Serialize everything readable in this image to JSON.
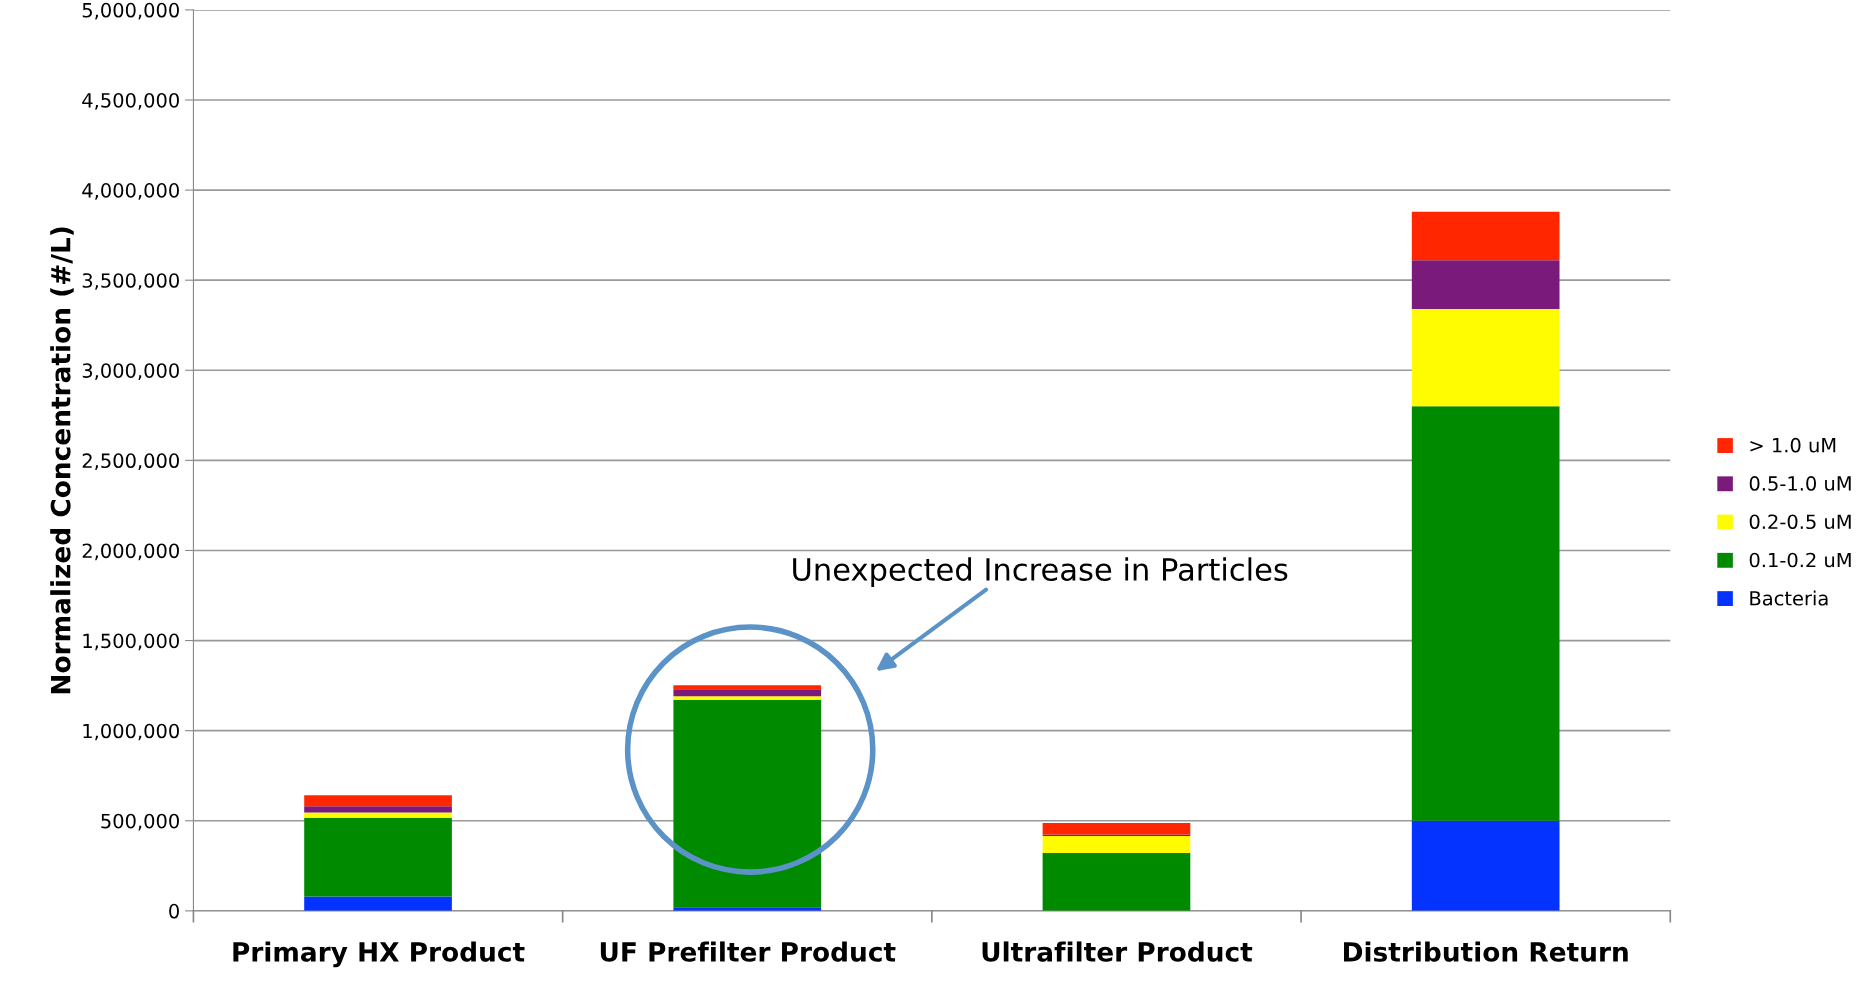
{
  "chart_data": {
    "type": "bar",
    "stacked": true,
    "ylabel": "Normalized Concentration (#/L)",
    "categories": [
      "Primary HX Product",
      "UF Prefilter Product",
      "Ultrafilter Product",
      "Distribution Return"
    ],
    "series": [
      {
        "name": "Bacteria",
        "color": "#0433ff",
        "values": [
          80000,
          20000,
          0,
          500000
        ]
      },
      {
        "name": "0.1-0.2 uM",
        "color": "#008a00",
        "values": [
          437000,
          1151000,
          321000,
          2300000
        ]
      },
      {
        "name": "0.2-0.5 uM",
        "color": "#fffb00",
        "values": [
          29000,
          20000,
          95000,
          540000
        ]
      },
      {
        "name": "0.5-1.0 uM",
        "color": "#7a1a7a",
        "values": [
          34000,
          39000,
          8000,
          270000
        ]
      },
      {
        "name": "> 1.0 uM",
        "color": "#ff2600",
        "values": [
          61000,
          22000,
          63000,
          270000
        ]
      }
    ],
    "ylim": [
      0,
      5000000
    ],
    "yticks": [
      {
        "value": 0,
        "label": "0"
      },
      {
        "value": 500000,
        "label": "500,000"
      },
      {
        "value": 1000000,
        "label": "1,000,000"
      },
      {
        "value": 1500000,
        "label": "1,500,000"
      },
      {
        "value": 2000000,
        "label": "2,000,000"
      },
      {
        "value": 2500000,
        "label": "2,500,000"
      },
      {
        "value": 3000000,
        "label": "3,000,000"
      },
      {
        "value": 3500000,
        "label": "3,500,000"
      },
      {
        "value": 4000000,
        "label": "4,000,000"
      },
      {
        "value": 4500000,
        "label": "4,500,000"
      },
      {
        "value": 5000000,
        "label": "5,000,000"
      }
    ],
    "grid": "y",
    "legend": "right",
    "annotations": [
      "Unexpected Increase in Particles"
    ]
  }
}
